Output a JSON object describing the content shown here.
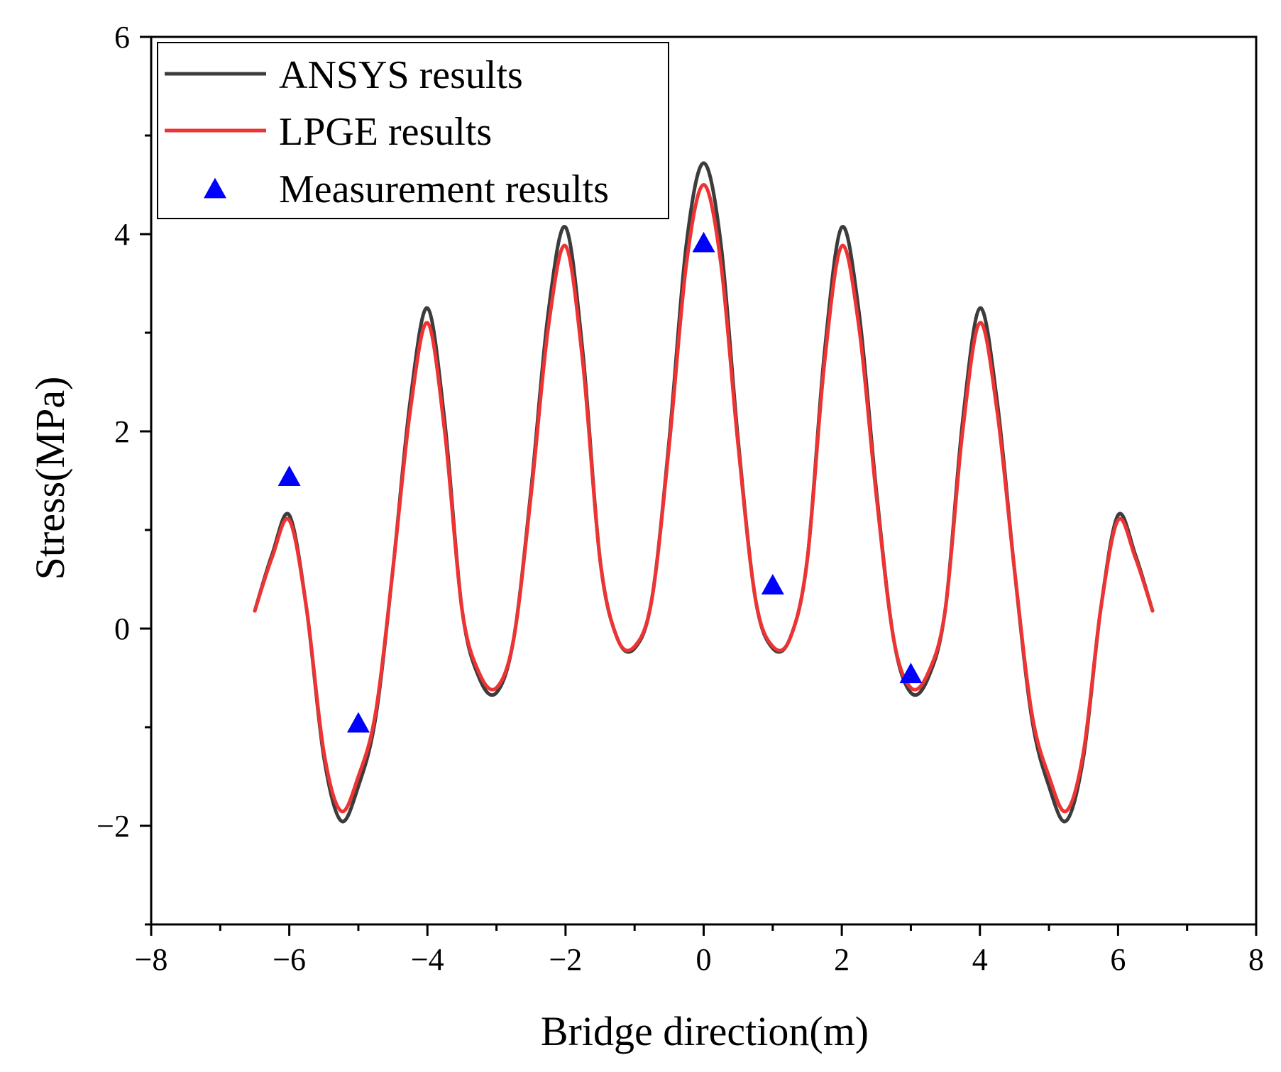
{
  "chart_data": {
    "type": "line",
    "title": "",
    "xlabel": "Bridge direction(m)",
    "ylabel": "Stress(MPa)",
    "xlim": [
      -8,
      8
    ],
    "ylim": [
      -3,
      6
    ],
    "xticks": [
      -8,
      -6,
      -4,
      -2,
      0,
      2,
      4,
      6,
      8
    ],
    "xtick_labels": [
      "−8",
      "−6",
      "−4",
      "−2",
      "0",
      "2",
      "4",
      "6",
      "8"
    ],
    "yticks": [
      -2,
      0,
      2,
      4,
      6
    ],
    "ytick_labels": [
      "−2",
      "0",
      "2",
      "4",
      "6"
    ],
    "grid": false,
    "legend_position": "top-left",
    "series": [
      {
        "name": "ANSYS results",
        "kind": "line",
        "color": "#3c3c3c",
        "x": [
          -6.5,
          -6.25,
          -6.0,
          -5.75,
          -5.5,
          -5.25,
          -5.0,
          -4.75,
          -4.5,
          -4.25,
          -4.0,
          -3.75,
          -3.5,
          -3.25,
          -3.0,
          -2.75,
          -2.5,
          -2.25,
          -2.0,
          -1.75,
          -1.5,
          -1.25,
          -1.0,
          -0.75,
          -0.5,
          -0.25,
          0.0,
          0.25,
          0.5,
          0.75,
          1.0,
          1.25,
          1.5,
          1.75,
          2.0,
          2.25,
          2.5,
          2.75,
          3.0,
          3.25,
          3.5,
          3.75,
          4.0,
          4.25,
          4.5,
          4.75,
          5.0,
          5.25,
          5.5,
          5.75,
          6.0,
          6.25,
          6.5
        ],
        "y": [
          0.18,
          0.75,
          1.15,
          0.2,
          -1.3,
          -1.95,
          -1.6,
          -0.9,
          0.6,
          2.3,
          3.25,
          2.1,
          0.2,
          -0.5,
          -0.65,
          -0.1,
          1.4,
          3.2,
          4.07,
          2.8,
          0.7,
          -0.1,
          -0.2,
          0.3,
          1.9,
          3.9,
          4.72,
          3.9,
          1.9,
          0.3,
          -0.2,
          -0.1,
          0.7,
          2.8,
          4.07,
          3.2,
          1.4,
          -0.1,
          -0.65,
          -0.5,
          0.2,
          2.1,
          3.25,
          2.3,
          0.6,
          -0.9,
          -1.6,
          -1.95,
          -1.3,
          0.2,
          1.15,
          0.75,
          0.18
        ]
      },
      {
        "name": "LPGE results",
        "kind": "line",
        "color": "#ee3333",
        "x": [
          -6.5,
          -6.25,
          -6.0,
          -5.75,
          -5.5,
          -5.25,
          -5.0,
          -4.75,
          -4.5,
          -4.25,
          -4.0,
          -3.75,
          -3.5,
          -3.25,
          -3.0,
          -2.75,
          -2.5,
          -2.25,
          -2.0,
          -1.75,
          -1.5,
          -1.25,
          -1.0,
          -0.75,
          -0.5,
          -0.25,
          0.0,
          0.25,
          0.5,
          0.75,
          1.0,
          1.25,
          1.5,
          1.75,
          2.0,
          2.25,
          2.5,
          2.75,
          3.0,
          3.25,
          3.5,
          3.75,
          4.0,
          4.25,
          4.5,
          4.75,
          5.0,
          5.25,
          5.5,
          5.75,
          6.0,
          6.25,
          6.5
        ],
        "y": [
          0.18,
          0.72,
          1.1,
          0.2,
          -1.25,
          -1.85,
          -1.5,
          -0.85,
          0.6,
          2.2,
          3.1,
          2.0,
          0.2,
          -0.45,
          -0.6,
          -0.1,
          1.35,
          3.05,
          3.88,
          2.7,
          0.7,
          -0.1,
          -0.18,
          0.3,
          1.85,
          3.7,
          4.5,
          3.7,
          1.85,
          0.3,
          -0.18,
          -0.1,
          0.7,
          2.7,
          3.88,
          3.05,
          1.35,
          -0.1,
          -0.6,
          -0.45,
          0.2,
          2.0,
          3.1,
          2.2,
          0.6,
          -0.85,
          -1.5,
          -1.85,
          -1.25,
          0.2,
          1.1,
          0.72,
          0.18
        ]
      },
      {
        "name": "Measurement results",
        "kind": "scatter",
        "marker": "triangle",
        "color": "#0000ff",
        "x": [
          -6,
          -5,
          0,
          1,
          3
        ],
        "y": [
          1.55,
          -0.95,
          3.92,
          0.45,
          -0.45
        ]
      }
    ]
  }
}
